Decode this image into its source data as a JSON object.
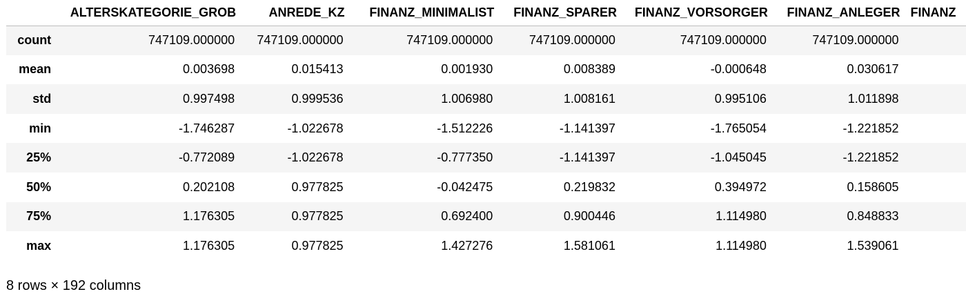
{
  "table": {
    "columns": [
      "ALTERSKATEGORIE_GROB",
      "ANREDE_KZ",
      "FINANZ_MINIMALIST",
      "FINANZ_SPARER",
      "FINANZ_VORSORGER",
      "FINANZ_ANLEGER",
      "FINANZ"
    ],
    "rows": [
      {
        "label": "count",
        "values": [
          "747109.000000",
          "747109.000000",
          "747109.000000",
          "747109.000000",
          "747109.000000",
          "747109.000000",
          ""
        ]
      },
      {
        "label": "mean",
        "values": [
          "0.003698",
          "0.015413",
          "0.001930",
          "0.008389",
          "-0.000648",
          "0.030617",
          ""
        ]
      },
      {
        "label": "std",
        "values": [
          "0.997498",
          "0.999536",
          "1.006980",
          "1.008161",
          "0.995106",
          "1.011898",
          ""
        ]
      },
      {
        "label": "min",
        "values": [
          "-1.746287",
          "-1.022678",
          "-1.512226",
          "-1.141397",
          "-1.765054",
          "-1.221852",
          ""
        ]
      },
      {
        "label": "25%",
        "values": [
          "-0.772089",
          "-1.022678",
          "-0.777350",
          "-1.141397",
          "-1.045045",
          "-1.221852",
          ""
        ]
      },
      {
        "label": "50%",
        "values": [
          "0.202108",
          "0.977825",
          "-0.042475",
          "0.219832",
          "0.394972",
          "0.158605",
          ""
        ]
      },
      {
        "label": "75%",
        "values": [
          "1.176305",
          "0.977825",
          "0.692400",
          "0.900446",
          "1.114980",
          "0.848833",
          ""
        ]
      },
      {
        "label": "max",
        "values": [
          "1.176305",
          "0.977825",
          "1.427276",
          "1.581061",
          "1.114980",
          "1.539061",
          ""
        ]
      }
    ]
  },
  "footer": {
    "shape_text": "8 rows × 192 columns"
  }
}
